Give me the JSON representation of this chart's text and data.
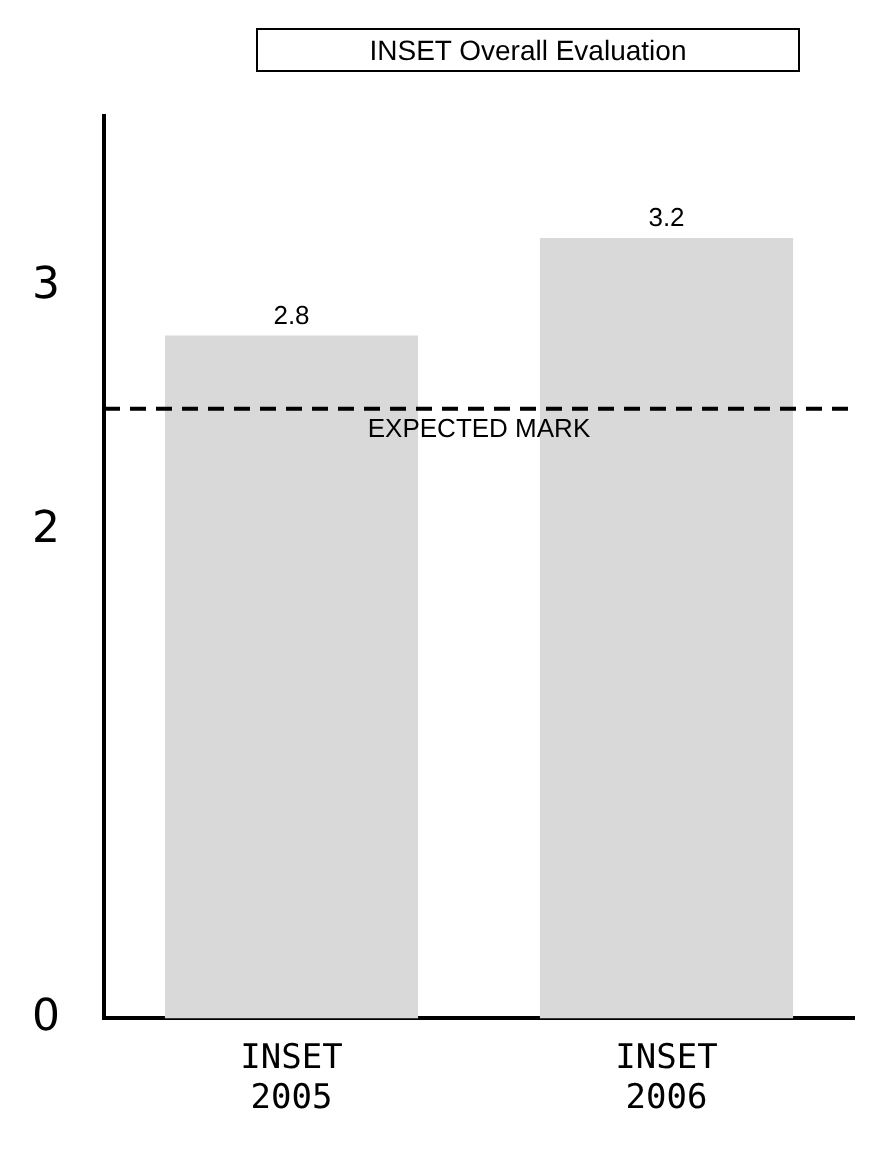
{
  "chart_data": {
    "type": "bar",
    "title": "INSET Overall Evaluation",
    "categories": [
      "INSET 2005",
      "INSET 2006"
    ],
    "values": [
      2.8,
      3.2
    ],
    "color": "#d9d9d9",
    "ylim": [
      0,
      3.7
    ],
    "yticks": [
      0,
      2,
      3
    ],
    "grid": false,
    "legend": false,
    "data_labels": true,
    "ref_lines": [
      {
        "axis": "y",
        "value": 2.5,
        "label": "EXPECTED MARK",
        "color": "#000000",
        "line_style": "dashed"
      }
    ]
  }
}
